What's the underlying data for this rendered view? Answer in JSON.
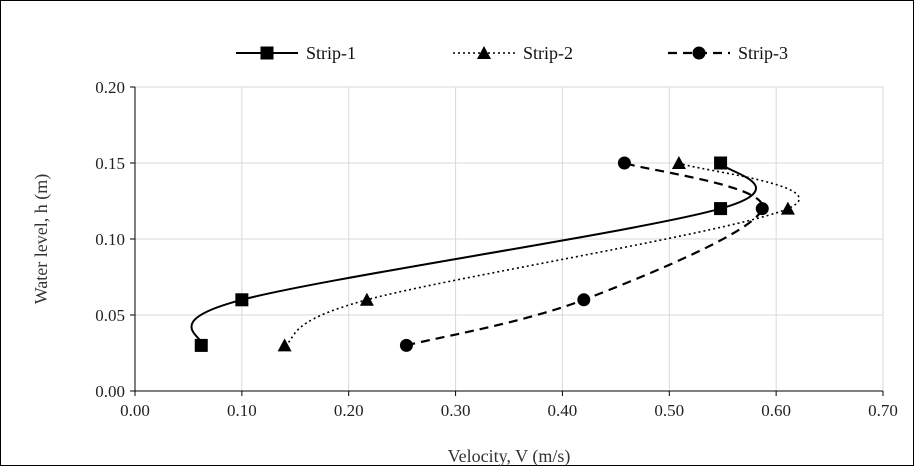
{
  "chart_data": {
    "type": "line",
    "title": "",
    "xlabel": "Velocity,  V (m/s)",
    "ylabel": "Water level,  h (m)",
    "xlim": [
      0,
      0.7
    ],
    "ylim": [
      0,
      0.2
    ],
    "xticks": [
      "0.00",
      "0.10",
      "0.20",
      "0.30",
      "0.40",
      "0.50",
      "0.60",
      "0.70"
    ],
    "yticks": [
      "0.00",
      "0.05",
      "0.10",
      "0.15",
      "0.20"
    ],
    "grid": true,
    "legend_position": "top",
    "smooth": true,
    "series": [
      {
        "name": "Strip-1",
        "marker": "square",
        "line_style": "solid",
        "color": "#000000",
        "points": [
          {
            "x": 0.062,
            "y": 0.03
          },
          {
            "x": 0.1,
            "y": 0.06
          },
          {
            "x": 0.548,
            "y": 0.12
          },
          {
            "x": 0.548,
            "y": 0.15
          }
        ]
      },
      {
        "name": "Strip-2",
        "marker": "triangle",
        "line_style": "dotted",
        "color": "#000000",
        "points": [
          {
            "x": 0.14,
            "y": 0.03
          },
          {
            "x": 0.217,
            "y": 0.06
          },
          {
            "x": 0.611,
            "y": 0.12
          },
          {
            "x": 0.509,
            "y": 0.15
          }
        ]
      },
      {
        "name": "Strip-3",
        "marker": "circle",
        "line_style": "dashed",
        "color": "#000000",
        "points": [
          {
            "x": 0.254,
            "y": 0.03
          },
          {
            "x": 0.42,
            "y": 0.06
          },
          {
            "x": 0.587,
            "y": 0.12
          },
          {
            "x": 0.458,
            "y": 0.15
          }
        ]
      }
    ]
  }
}
